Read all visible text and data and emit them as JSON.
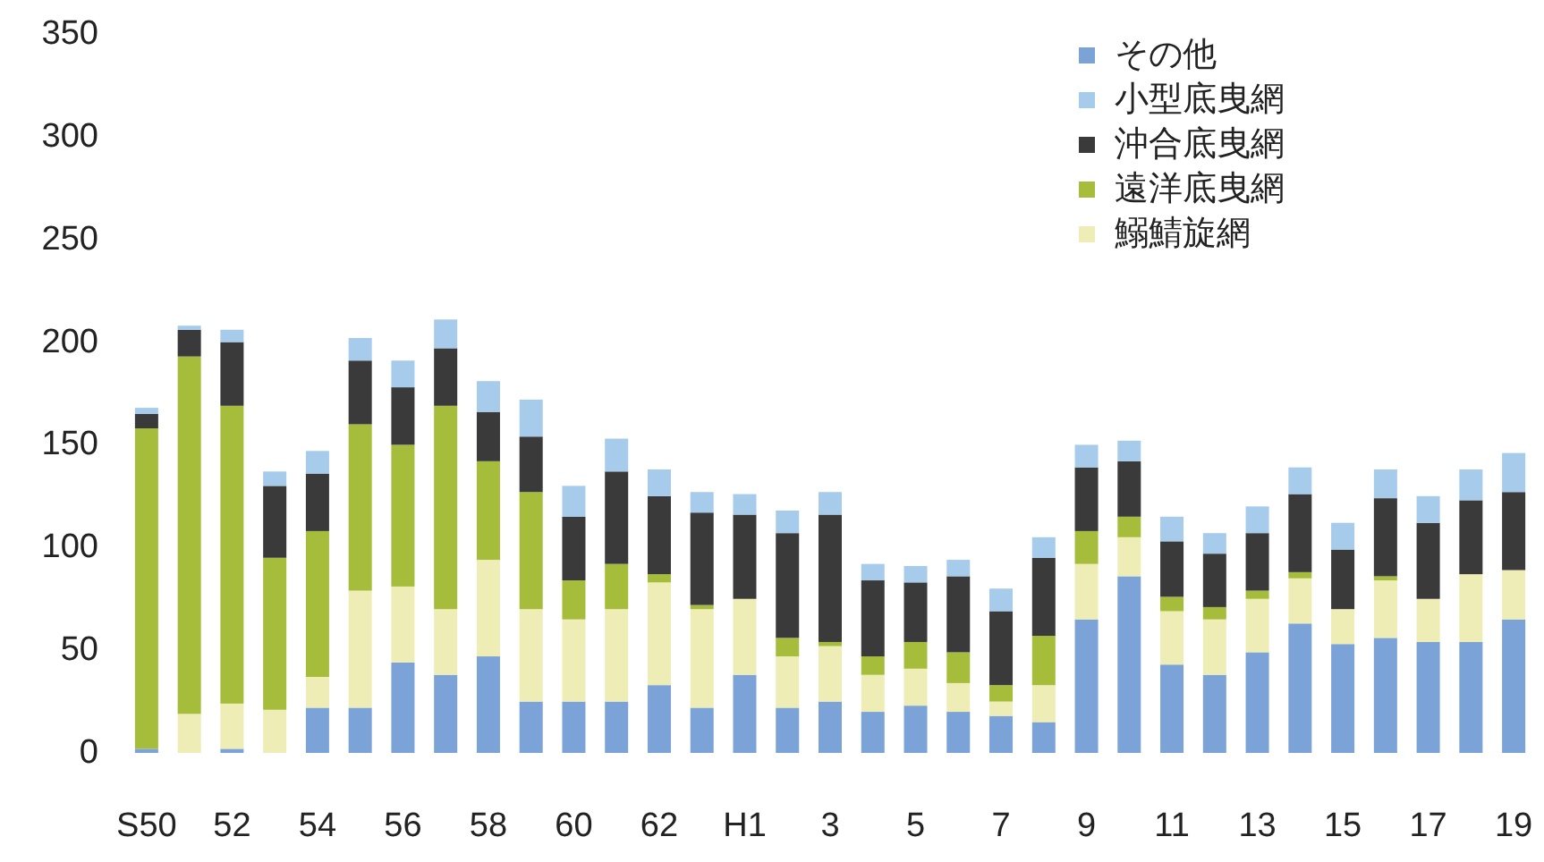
{
  "chart_data": {
    "type": "bar",
    "stacked": true,
    "legend": "top right",
    "categories": [
      "S50",
      null,
      "52",
      null,
      "54",
      null,
      "56",
      null,
      "58",
      null,
      "60",
      null,
      "62",
      null,
      "H1",
      null,
      "3",
      null,
      "5",
      null,
      "7",
      null,
      "9",
      null,
      "11",
      null,
      "13",
      null,
      "15",
      null,
      "17",
      null,
      "19"
    ],
    "series": [
      {
        "name": "その他",
        "color": "#7ba3d8",
        "values": [
          2,
          0,
          2,
          0,
          22,
          22,
          44,
          38,
          47,
          25,
          25,
          25,
          33,
          22,
          38,
          22,
          25,
          20,
          23,
          20,
          18,
          15,
          65,
          86,
          43,
          38,
          49,
          63,
          53,
          56,
          54,
          54,
          65
        ]
      },
      {
        "name": "鰯鯖旋網",
        "color": "#eeedb5",
        "values": [
          0,
          19,
          22,
          21,
          15,
          57,
          37,
          32,
          47,
          45,
          40,
          45,
          50,
          48,
          37,
          25,
          27,
          18,
          18,
          14,
          7,
          18,
          27,
          19,
          26,
          27,
          26,
          22,
          17,
          28,
          21,
          33,
          24
        ]
      },
      {
        "name": "遠洋底曳網",
        "color": "#a5bd3a",
        "values": [
          156,
          174,
          145,
          74,
          71,
          81,
          69,
          99,
          48,
          57,
          19,
          22,
          4,
          2,
          0,
          9,
          2,
          9,
          13,
          15,
          8,
          24,
          16,
          10,
          7,
          6,
          4,
          3,
          0,
          2,
          0,
          0,
          0
        ]
      },
      {
        "name": "沖合底曳網",
        "color": "#3a3a3a",
        "values": [
          7,
          13,
          31,
          35,
          28,
          31,
          28,
          28,
          24,
          27,
          31,
          45,
          38,
          45,
          41,
          51,
          62,
          37,
          29,
          37,
          36,
          38,
          31,
          27,
          27,
          26,
          28,
          38,
          29,
          38,
          37,
          36,
          38
        ]
      },
      {
        "name": "小型底曳網",
        "color": "#a7cbeb",
        "values": [
          3,
          2,
          6,
          7,
          11,
          11,
          13,
          14,
          15,
          18,
          15,
          16,
          13,
          10,
          10,
          11,
          11,
          8,
          8,
          8,
          11,
          10,
          11,
          10,
          12,
          10,
          13,
          13,
          13,
          14,
          13,
          15,
          19
        ]
      }
    ],
    "ylim": [
      0,
      350
    ],
    "yticks": [
      0,
      50,
      100,
      150,
      200,
      250,
      300,
      350
    ]
  }
}
